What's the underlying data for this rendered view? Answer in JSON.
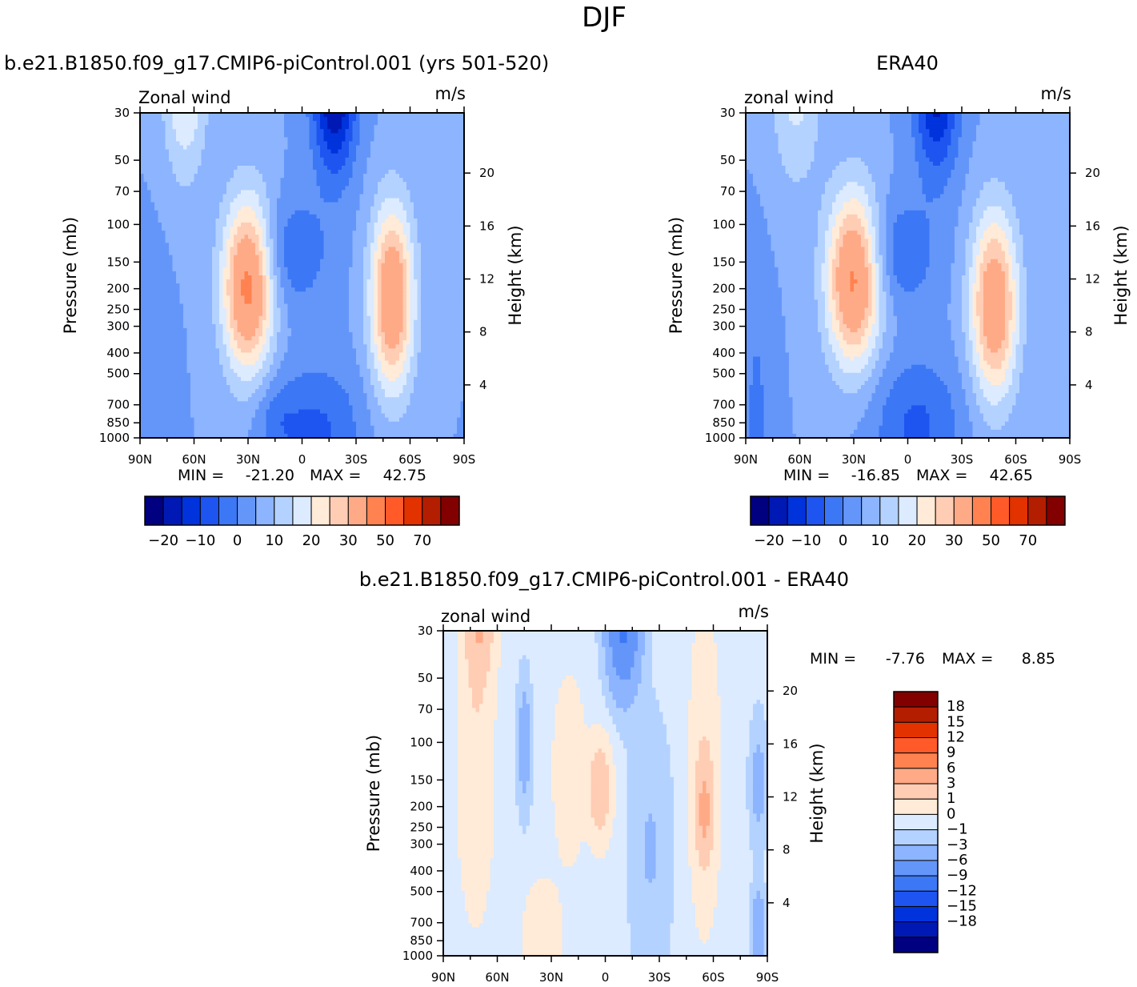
{
  "figure": {
    "title": "DJF"
  },
  "colors": {
    "main_levels": [
      -20,
      -15,
      -10,
      -5,
      0,
      5,
      10,
      15,
      20,
      25,
      30,
      40,
      50,
      60,
      70
    ],
    "main_palette": [
      "#000080",
      "#0019b4",
      "#0033dc",
      "#1e55f0",
      "#3c78f5",
      "#6496fa",
      "#8cb4ff",
      "#b4d2ff",
      "#dcebff",
      "#ffebd7",
      "#ffcdb4",
      "#ffaa87",
      "#ff8250",
      "#ff5a28",
      "#e13200",
      "#b41e00",
      "#820000"
    ],
    "diff_levels": [
      -18,
      -15,
      -12,
      -9,
      -6,
      -3,
      -1,
      0,
      1,
      3,
      6,
      9,
      12,
      15,
      18
    ],
    "diff_palette": [
      "#000080",
      "#0019b4",
      "#0033dc",
      "#1e55f0",
      "#3c78f5",
      "#6496fa",
      "#8cb4ff",
      "#b4d2ff",
      "#dcebff",
      "#ffebd7",
      "#ffcdb4",
      "#ffaa87",
      "#ff8250",
      "#ff5a28",
      "#e13200",
      "#b41e00",
      "#820000"
    ]
  },
  "colorbar": {
    "main_labels": [
      "-20",
      "-10",
      "0",
      "10",
      "20",
      "30",
      "50",
      "70"
    ],
    "diff_labels": [
      "18",
      "15",
      "12",
      "9",
      "6",
      "3",
      "1",
      "0",
      "-1",
      "-3",
      "-6",
      "-9",
      "-12",
      "-15",
      "-18"
    ]
  },
  "chart_data": [
    {
      "type": "heatmap",
      "id": "model",
      "title": "b.e21.B1850.f09_g17.CMIP6-piControl.001 (yrs 501-520)",
      "left_label": "Zonal wind",
      "units": "m/s",
      "ylabel": "Pressure (mb)",
      "y2label": "Height (km)",
      "xticks": [
        "90N",
        "60N",
        "30N",
        "0",
        "30S",
        "60S",
        "90S"
      ],
      "yticks": [
        "30",
        "50",
        "70",
        "100",
        "150",
        "200",
        "250",
        "300",
        "400",
        "500",
        "700",
        "850",
        "1000"
      ],
      "y2ticks": [
        "4",
        "8",
        "12",
        "16",
        "20"
      ],
      "min_label": "MIN =",
      "min_value": "-21.20",
      "max_label": "MAX =",
      "max_value": "42.75",
      "field": {
        "base": 5,
        "features": [
          {
            "lat": 65,
            "z": 28,
            "amp": 18,
            "slat": 12,
            "sz": 8
          },
          {
            "lat": 30,
            "z": 11.5,
            "amp": 38,
            "slat": 14,
            "sz": 6.5
          },
          {
            "lat": -50,
            "z": 10.5,
            "amp": 34,
            "slat": 12,
            "sz": 7
          },
          {
            "lat": -18,
            "z": 26,
            "amp": -26,
            "slat": 12,
            "sz": 6
          },
          {
            "lat": 6,
            "z": 14,
            "amp": -10,
            "slat": 20,
            "sz": 4
          },
          {
            "lat": -8,
            "z": 0.5,
            "amp": -11,
            "slat": 25,
            "sz": 5
          },
          {
            "lat": 82,
            "z": 2,
            "amp": -5,
            "slat": 9,
            "sz": 10
          },
          {
            "lat": 15,
            "z": 1.5,
            "amp": -5,
            "slat": 12,
            "sz": 3
          }
        ]
      }
    },
    {
      "type": "heatmap",
      "id": "obs",
      "title": "ERA40",
      "left_label": "zonal wind",
      "units": "m/s",
      "ylabel": "Pressure (mb)",
      "y2label": "Height (km)",
      "xticks": [
        "90N",
        "60N",
        "30N",
        "0",
        "30S",
        "60S",
        "90S"
      ],
      "yticks": [
        "30",
        "50",
        "70",
        "100",
        "150",
        "200",
        "250",
        "300",
        "400",
        "500",
        "700",
        "850",
        "1000"
      ],
      "y2ticks": [
        "4",
        "8",
        "12",
        "16",
        "20"
      ],
      "min_label": "MIN =",
      "min_value": "-16.85",
      "max_label": "MAX =",
      "max_value": "42.65",
      "field": {
        "base": 5,
        "features": [
          {
            "lat": 62,
            "z": 27,
            "amp": 12,
            "slat": 14,
            "sz": 8
          },
          {
            "lat": 30,
            "z": 12,
            "amp": 37,
            "slat": 15,
            "sz": 6.5
          },
          {
            "lat": -48,
            "z": 10,
            "amp": 33,
            "slat": 13,
            "sz": 7
          },
          {
            "lat": -16,
            "z": 26,
            "amp": -22,
            "slat": 12,
            "sz": 6
          },
          {
            "lat": 5,
            "z": 14,
            "amp": -10,
            "slat": 20,
            "sz": 4
          },
          {
            "lat": -5,
            "z": 1,
            "amp": -11,
            "slat": 25,
            "sz": 5
          },
          {
            "lat": 84,
            "z": 2,
            "amp": -6,
            "slat": 8,
            "sz": 10
          }
        ]
      }
    },
    {
      "type": "heatmap",
      "id": "diff",
      "title": "b.e21.B1850.f09_g17.CMIP6-piControl.001 - ERA40",
      "left_label": "zonal wind",
      "units": "m/s",
      "ylabel": "Pressure (mb)",
      "y2label": "Height (km)",
      "xticks": [
        "90N",
        "60N",
        "30N",
        "0",
        "30S",
        "60S",
        "90S"
      ],
      "yticks": [
        "30",
        "50",
        "70",
        "100",
        "150",
        "200",
        "250",
        "300",
        "400",
        "500",
        "700",
        "850",
        "1000"
      ],
      "y2ticks": [
        "4",
        "8",
        "12",
        "16",
        "20"
      ],
      "min_label": "MIN =",
      "min_value": "-7.76",
      "max_label": "MAX =",
      "max_value": "8.85",
      "field": {
        "base": 0.4,
        "features": [
          {
            "lat": 70,
            "z": 26,
            "amp": 6,
            "slat": 8,
            "sz": 5
          },
          {
            "lat": 72,
            "z": 14,
            "amp": 2.5,
            "slat": 9,
            "sz": 10
          },
          {
            "lat": 45,
            "z": 16,
            "amp": -2.5,
            "slat": 4,
            "sz": 5
          },
          {
            "lat": 3,
            "z": 12.5,
            "amp": 5.5,
            "slat": 6,
            "sz": 3.5
          },
          {
            "lat": 20,
            "z": 14,
            "amp": 2.5,
            "slat": 8,
            "sz": 6
          },
          {
            "lat": -10,
            "z": 25,
            "amp": -7,
            "slat": 9,
            "sz": 5
          },
          {
            "lat": -25,
            "z": 8,
            "amp": -1.5,
            "slat": 12,
            "sz": 10
          },
          {
            "lat": -55,
            "z": 11,
            "amp": 5,
            "slat": 5,
            "sz": 4
          },
          {
            "lat": -55,
            "z": 14,
            "amp": 2,
            "slat": 8,
            "sz": 12
          },
          {
            "lat": 35,
            "z": 1.5,
            "amp": 2,
            "slat": 10,
            "sz": 4
          },
          {
            "lat": -85,
            "z": 13,
            "amp": -2,
            "slat": 5,
            "sz": 5
          },
          {
            "lat": -85,
            "z": 2,
            "amp": -3,
            "slat": 4,
            "sz": 3
          }
        ]
      }
    }
  ]
}
